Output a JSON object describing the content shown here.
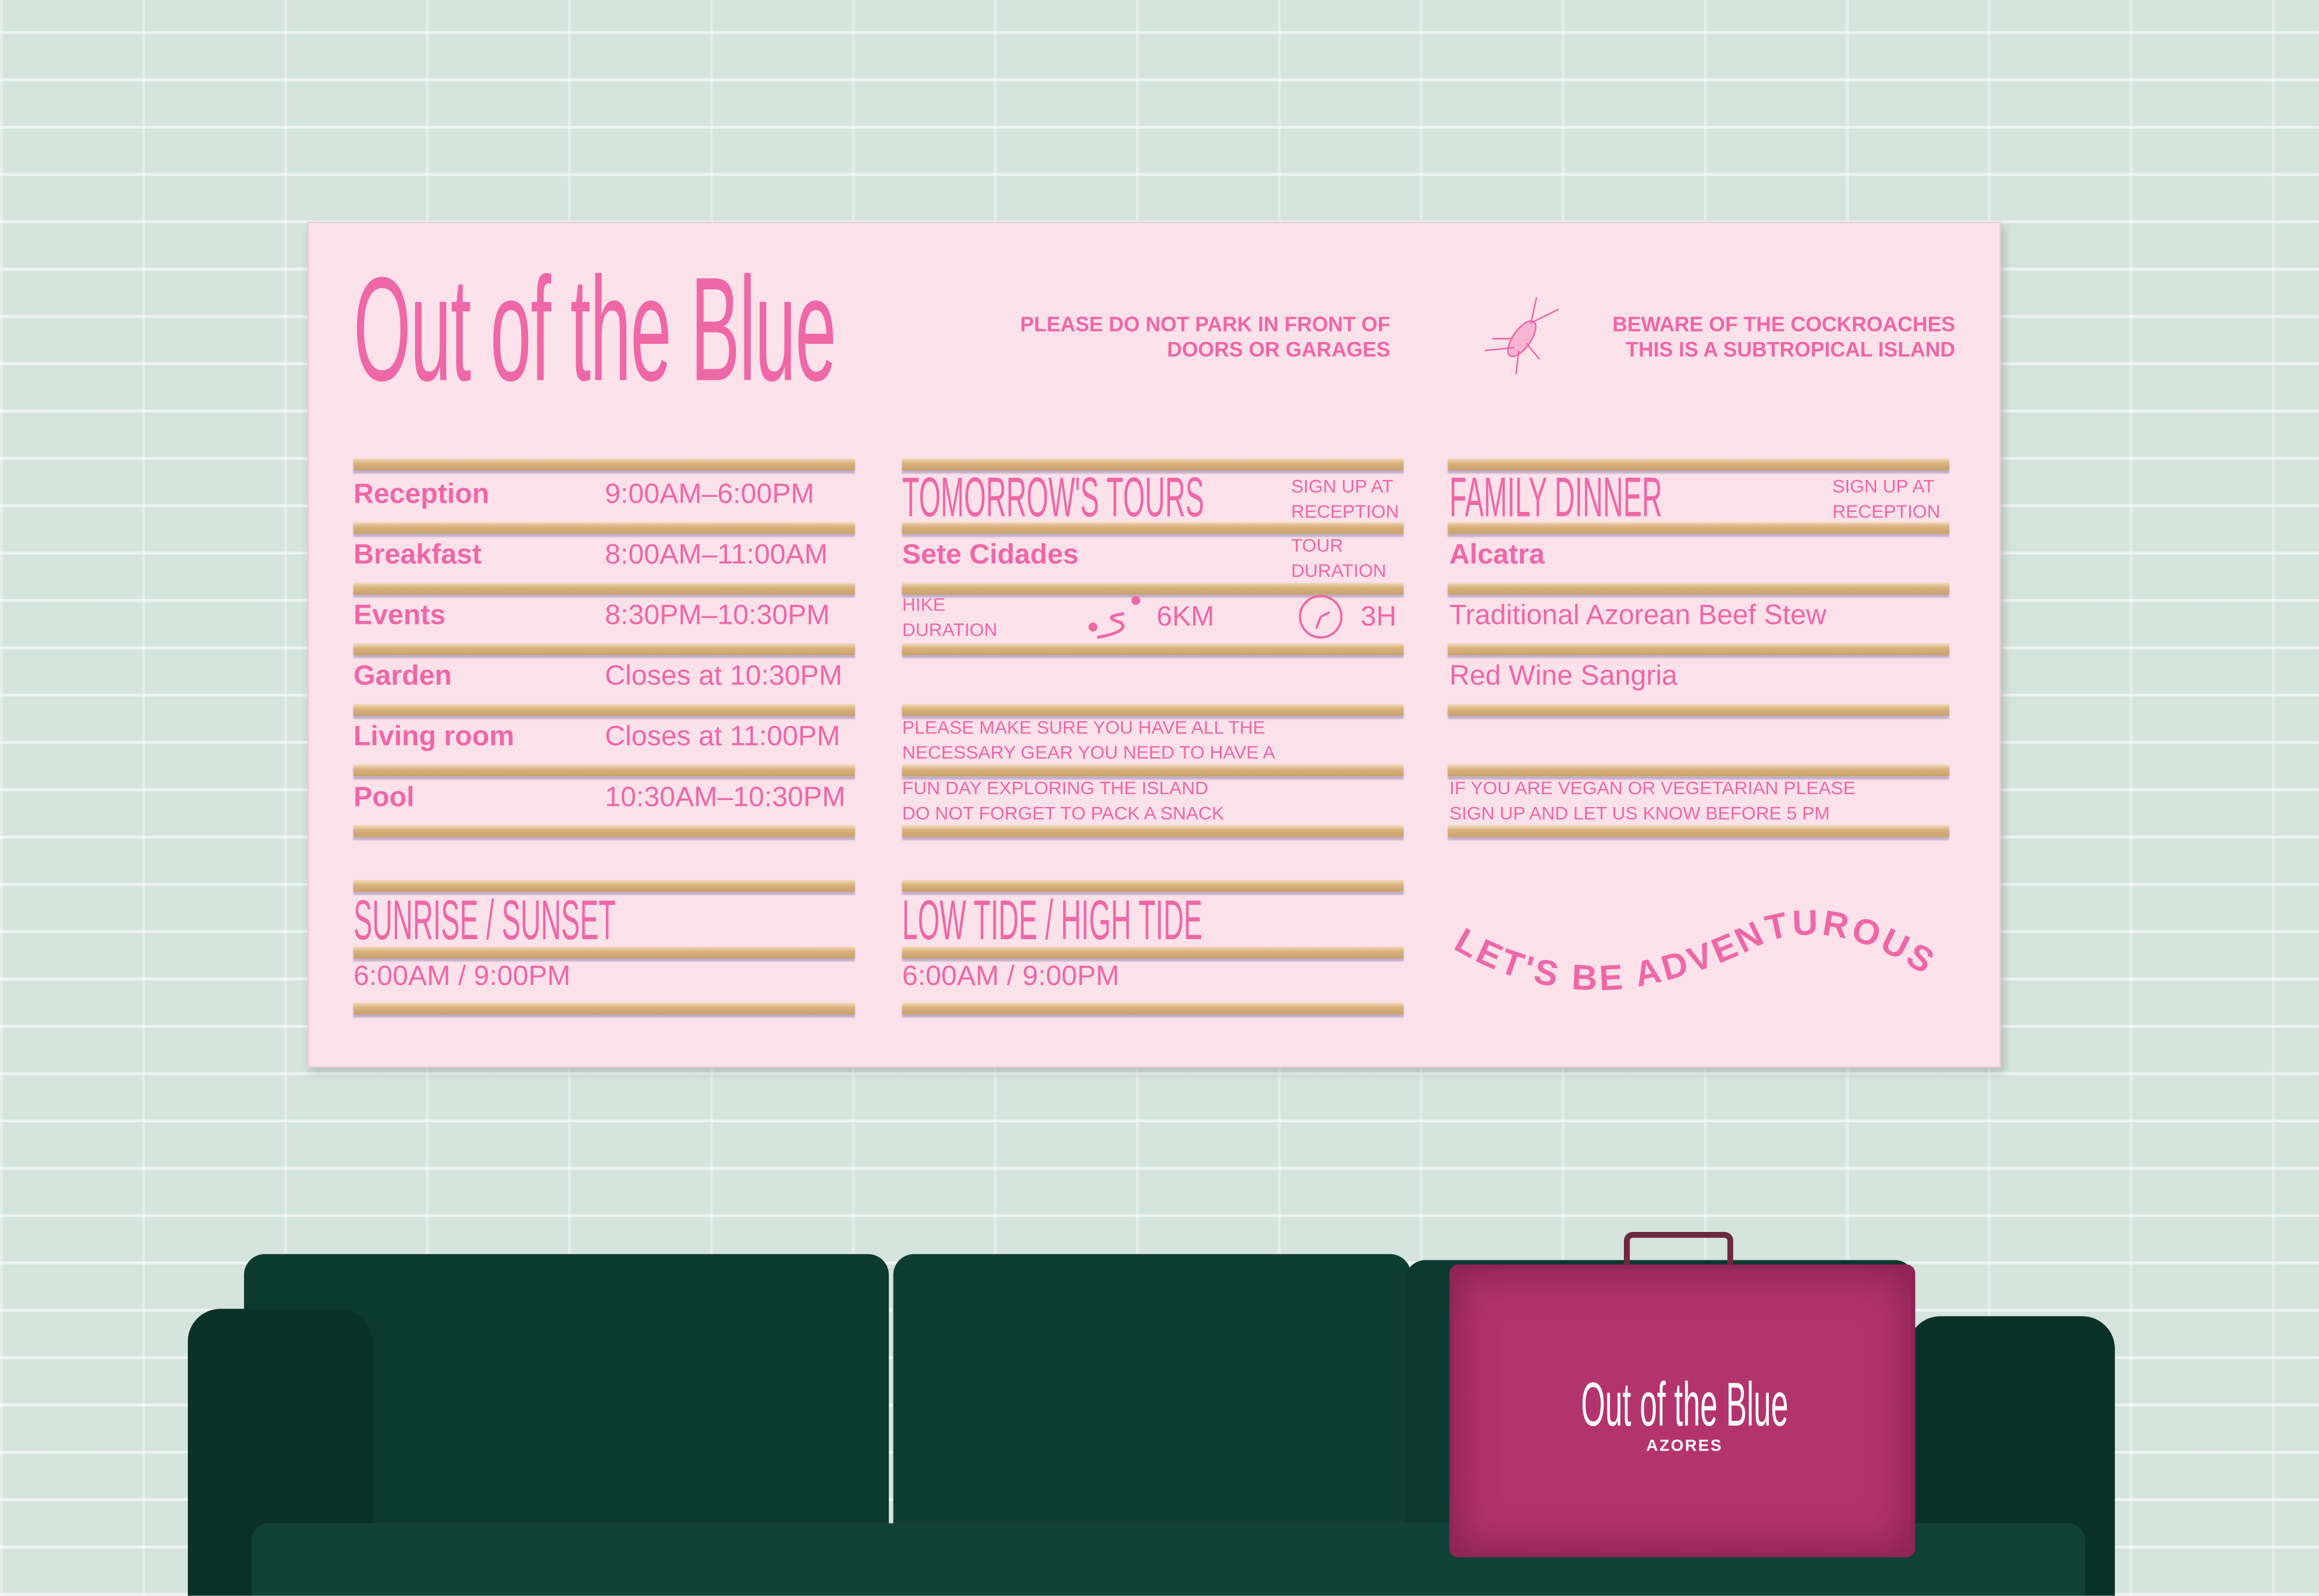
{
  "sign": {
    "title": "Out of the Blue",
    "notice_parking": [
      "PLEASE DO NOT PARK IN FRONT OF",
      "DOORS OR GARAGES"
    ],
    "notice_cockroach": [
      "BEWARE OF THE COCKROACHES",
      "THIS IS A SUBTROPICAL ISLAND"
    ],
    "cockroach_icon": "cockroach-icon",
    "hours": [
      {
        "label": "Reception",
        "value": "9:00AM–6:00PM"
      },
      {
        "label": "Breakfast",
        "value": "8:00AM–11:00AM"
      },
      {
        "label": "Events",
        "value": "8:30PM–10:30PM"
      },
      {
        "label": "Garden",
        "value": "Closes at 10:30PM"
      },
      {
        "label": "Living room",
        "value": "Closes at 11:00PM"
      },
      {
        "label": "Pool",
        "value": "10:30AM–10:30PM"
      }
    ],
    "tours": {
      "heading": "TOMORROW'S TOURS",
      "signup": [
        "SIGN UP AT",
        "RECEPTION"
      ],
      "name": "Sete Cidades",
      "tour_duration": [
        "TOUR",
        "DURATION"
      ],
      "hike_label": [
        "HIKE",
        "DURATION"
      ],
      "distance": "6KM",
      "duration": "3H",
      "note": [
        "PLEASE MAKE SURE YOU HAVE ALL THE",
        "NECESSARY GEAR YOU NEED TO HAVE A",
        "FUN DAY EXPLORING THE ISLAND",
        "DO NOT FORGET TO PACK A SNACK"
      ]
    },
    "dinner": {
      "heading": "FAMILY DINNER",
      "signup": [
        "SIGN UP AT",
        "RECEPTION"
      ],
      "items": [
        "Alcatra",
        "Traditional Azorean Beef Stew",
        "Red Wine Sangria"
      ],
      "note": [
        "IF YOU ARE VEGAN OR VEGETARIAN PLEASE",
        "SIGN UP AND LET US KNOW BEFORE 5 PM"
      ]
    },
    "sun": {
      "heading": "SUNRISE / SUNSET",
      "value": "6:00AM / 9:00PM"
    },
    "tide": {
      "heading": "LOW TIDE / HIGH TIDE",
      "value": "6:00AM / 9:00PM"
    },
    "slogan": "LET'S BE ADVENTUROUS"
  },
  "suitcase": {
    "brand": "Out of the Blue",
    "sub": "AZORES"
  },
  "colors": {
    "accent": "#ee67a6",
    "board": "#fae1ea",
    "sofa": "#0e3a31",
    "suitcase": "#b3336c",
    "wall": "#d5e4dd"
  }
}
